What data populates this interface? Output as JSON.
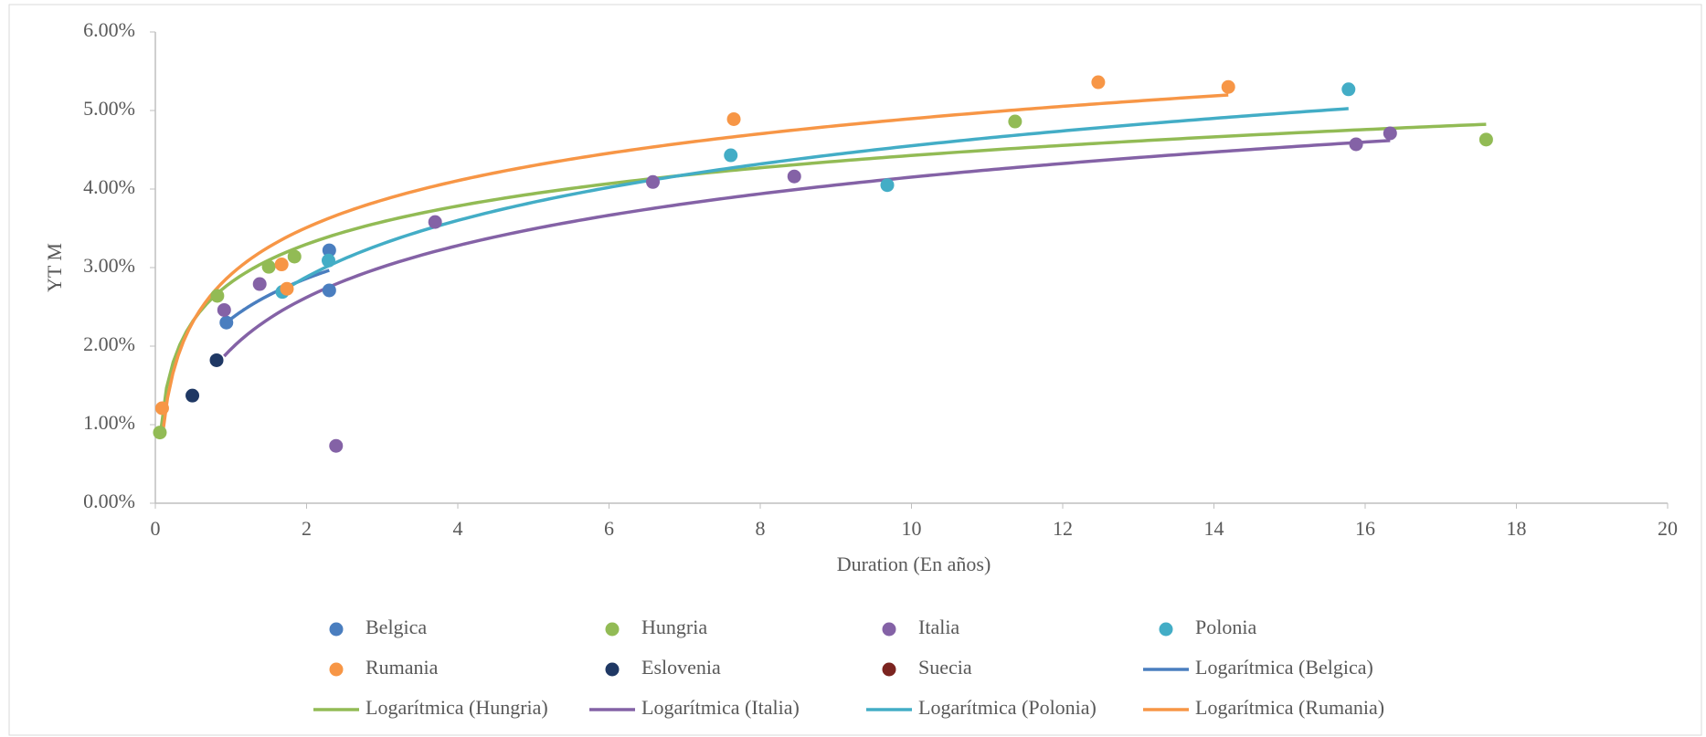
{
  "chart_data": {
    "type": "scatter",
    "xlabel": "Duration (En años)",
    "ylabel": "YT M",
    "xlim": [
      0,
      20
    ],
    "xticks": [
      0,
      2,
      4,
      6,
      8,
      10,
      12,
      14,
      16,
      18,
      20
    ],
    "ylim": [
      0,
      6
    ],
    "yticks": [
      {
        "value": 0,
        "label": "0.00%"
      },
      {
        "value": 1,
        "label": "1.00%"
      },
      {
        "value": 2,
        "label": "2.00%"
      },
      {
        "value": 3,
        "label": "3.00%"
      },
      {
        "value": 4,
        "label": "4.00%"
      },
      {
        "value": 5,
        "label": "5.00%"
      },
      {
        "value": 6,
        "label": "6.00%"
      }
    ],
    "trendline": "logarithmic",
    "series": [
      {
        "name": "Belgica",
        "color": "#4a7ebf",
        "trend_name": "Logarítmica (Belgica)",
        "x": [
          0.94,
          2.3,
          2.3
        ],
        "values": [
          2.3,
          3.22,
          2.71
        ]
      },
      {
        "name": "Hungria",
        "color": "#92bb55",
        "trend_name": "Logarítmica (Hungria)",
        "x": [
          0.06,
          0.82,
          1.5,
          1.84,
          11.37,
          17.6
        ],
        "values": [
          0.9,
          2.64,
          3.01,
          3.14,
          4.86,
          4.63
        ]
      },
      {
        "name": "Italia",
        "color": "#8462a6",
        "trend_name": "Logarítmica (Italia)",
        "x": [
          0.91,
          1.38,
          2.39,
          3.7,
          6.58,
          8.45,
          15.88,
          16.33
        ],
        "values": [
          2.46,
          2.79,
          0.73,
          3.58,
          4.09,
          4.16,
          4.57,
          4.71
        ]
      },
      {
        "name": "Polonia",
        "color": "#43adc6",
        "trend_name": "Logarítmica (Polonia)",
        "x": [
          1.68,
          2.29,
          7.61,
          9.68,
          15.78
        ],
        "values": [
          2.69,
          3.09,
          4.43,
          4.05,
          5.27
        ]
      },
      {
        "name": "Rumania",
        "color": "#f79646",
        "trend_name": "Logarítmica (Rumania)",
        "x": [
          0.09,
          1.74,
          1.67,
          7.65,
          12.47,
          14.19
        ],
        "values": [
          1.21,
          2.73,
          3.04,
          4.89,
          5.36,
          5.3
        ]
      },
      {
        "name": "Eslovenia",
        "color": "#1f3864",
        "x": [
          0.49,
          0.81
        ],
        "values": [
          1.37,
          1.82
        ]
      },
      {
        "name": "Suecia",
        "color": "#7b2420",
        "x": [],
        "values": []
      }
    ]
  }
}
